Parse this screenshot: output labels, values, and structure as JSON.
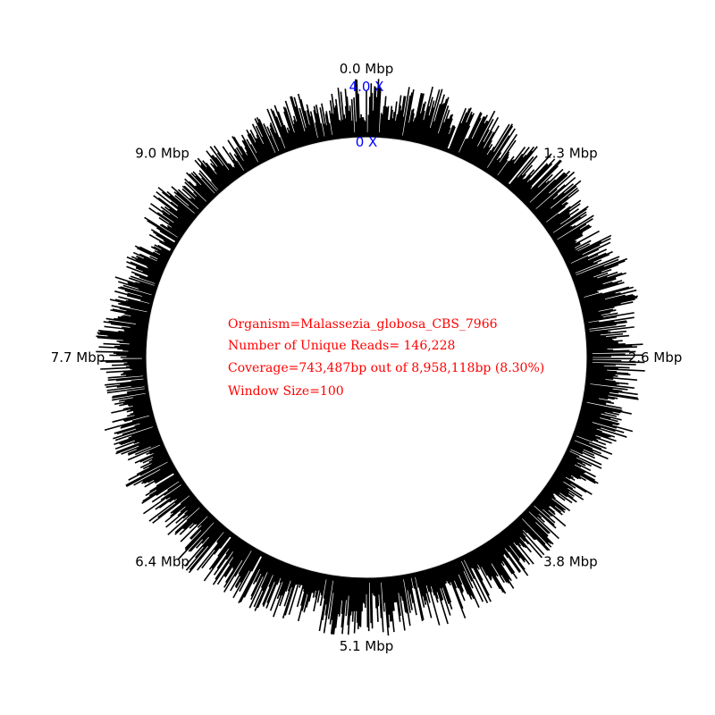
{
  "chart_data": {
    "type": "circular-coverage",
    "genome_length_bp": 8958118,
    "tick_labels": [
      "0.0 Mbp",
      "1.3 Mbp",
      "2.6 Mbp",
      "3.8 Mbp",
      "5.1 Mbp",
      "6.4 Mbp",
      "7.7 Mbp",
      "9.0 Mbp"
    ],
    "scale": {
      "max_label": "4.0 X",
      "min_label": "0 X",
      "max_value": 4.0,
      "min_value": 0
    },
    "info": {
      "organism": "Organism=Malassezia_globosa_CBS_7966",
      "unique_reads": "Number of Unique Reads= 146,228",
      "coverage": "Coverage=743,487bp out of 8,958,118bp (8.30%)",
      "window": "Window Size=100"
    },
    "colors": {
      "bars": "#000000",
      "scale": "#0000ff",
      "info": "#ff0000"
    },
    "coverage_profile": {
      "description_values": "fraction of max depth per segment, segments evenly spaced from 0 to genome length",
      "segment_count": 72,
      "values": [
        0.75,
        0.8,
        0.7,
        0.85,
        0.6,
        0.75,
        0.8,
        0.65,
        0.7,
        0.75,
        0.8,
        0.7,
        0.6,
        0.75,
        0.8,
        0.85,
        0.7,
        0.65,
        0.9,
        0.8,
        0.7,
        0.75,
        0.6,
        0.55,
        0.6,
        0.5,
        0.55,
        0.6,
        0.65,
        0.7,
        0.75,
        0.7,
        0.8,
        0.75,
        0.7,
        0.8,
        0.75,
        0.85,
        0.8,
        0.7,
        0.75,
        0.8,
        0.7,
        0.75,
        0.8,
        0.7,
        0.65,
        0.7,
        0.75,
        0.6,
        0.65,
        0.7,
        0.55,
        0.6,
        0.65,
        0.7,
        0.6,
        0.55,
        0.6,
        0.5,
        0.55,
        0.6,
        0.65,
        0.5,
        0.6,
        0.55,
        0.5,
        0.6,
        0.65,
        0.7,
        0.75,
        0.8
      ]
    }
  }
}
